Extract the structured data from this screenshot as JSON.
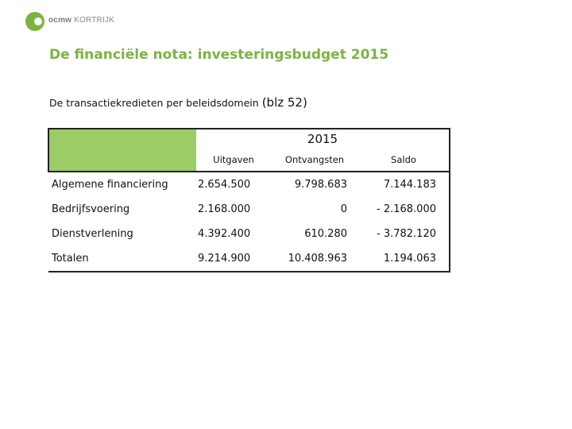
{
  "logo": {
    "brand": "ocmw",
    "city": "KORTRIJK",
    "accent": "#7cb342"
  },
  "title": "De financiële nota: investeringsbudget 2015",
  "subtitle": {
    "text": "De transactiekredieten per beleidsdomein",
    "ref": "(blz 52)"
  },
  "table": {
    "year": "2015",
    "columns": [
      "Uitgaven",
      "Ontvangsten",
      "Saldo"
    ],
    "rows": [
      {
        "label": "Algemene financiering",
        "uitgaven": "2.654.500",
        "ontvangsten": "9.798.683",
        "saldo": "7.144.183"
      },
      {
        "label": "Bedrijfsvoering",
        "uitgaven": "2.168.000",
        "ontvangsten": "0",
        "saldo": "- 2.168.000"
      },
      {
        "label": "Dienstverlening",
        "uitgaven": "4.392.400",
        "ontvangsten": "610.280",
        "saldo": "- 3.782.120"
      },
      {
        "label": "Totalen",
        "uitgaven": "9.214.900",
        "ontvangsten": "10.408.963",
        "saldo": "1.194.063"
      }
    ]
  },
  "colors": {
    "header_fill": "#9ccc65",
    "title": "#7cb342"
  }
}
